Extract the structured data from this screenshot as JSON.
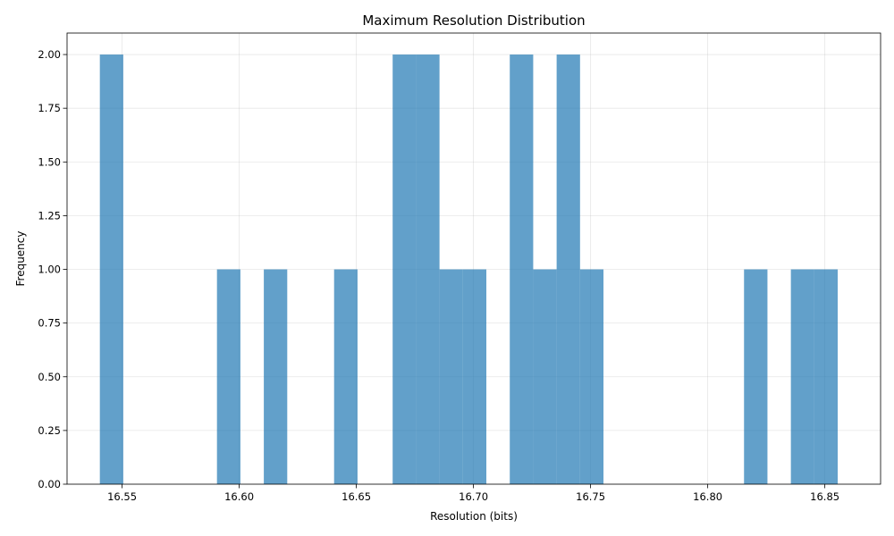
{
  "chart_data": {
    "type": "bar",
    "title": "Maximum Resolution Distribution",
    "xlabel": "Resolution (bits)",
    "ylabel": "Frequency",
    "xlim": [
      16.5265,
      16.8738
    ],
    "ylim": [
      0,
      2.1
    ],
    "xticks": [
      "16.55",
      "16.60",
      "16.65",
      "16.70",
      "16.75",
      "16.80",
      "16.85"
    ],
    "xtick_values": [
      16.55,
      16.6,
      16.65,
      16.7,
      16.75,
      16.8,
      16.85
    ],
    "yticks": [
      "0.00",
      "0.25",
      "0.50",
      "0.75",
      "1.00",
      "1.25",
      "1.50",
      "1.75",
      "2.00"
    ],
    "ytick_values": [
      0,
      0.25,
      0.5,
      0.75,
      1.0,
      1.25,
      1.5,
      1.75,
      2.0
    ],
    "grid": true,
    "bar_color": "#1f77b4",
    "bar_opacity": 0.7,
    "bins": [
      {
        "x0": 16.5405,
        "x1": 16.5505,
        "count": 2
      },
      {
        "x0": 16.5905,
        "x1": 16.6005,
        "count": 1
      },
      {
        "x0": 16.6105,
        "x1": 16.6205,
        "count": 1
      },
      {
        "x0": 16.6405,
        "x1": 16.6505,
        "count": 1
      },
      {
        "x0": 16.6655,
        "x1": 16.6755,
        "count": 2
      },
      {
        "x0": 16.6755,
        "x1": 16.6855,
        "count": 2
      },
      {
        "x0": 16.6855,
        "x1": 16.6955,
        "count": 1
      },
      {
        "x0": 16.6955,
        "x1": 16.7055,
        "count": 1
      },
      {
        "x0": 16.7155,
        "x1": 16.7255,
        "count": 2
      },
      {
        "x0": 16.7255,
        "x1": 16.7355,
        "count": 1
      },
      {
        "x0": 16.7355,
        "x1": 16.7455,
        "count": 2
      },
      {
        "x0": 16.7455,
        "x1": 16.7555,
        "count": 1
      },
      {
        "x0": 16.8155,
        "x1": 16.8255,
        "count": 1
      },
      {
        "x0": 16.8355,
        "x1": 16.8455,
        "count": 1
      },
      {
        "x0": 16.8455,
        "x1": 16.8555,
        "count": 1
      }
    ]
  }
}
